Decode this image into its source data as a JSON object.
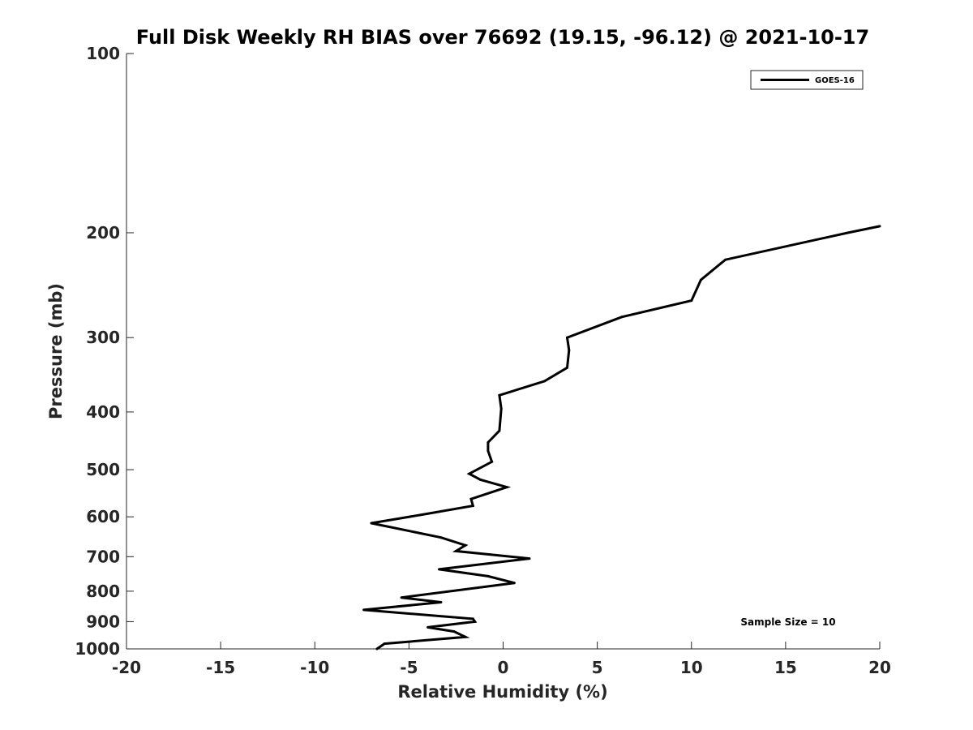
{
  "chart_data": {
    "type": "line",
    "title": "Full Disk Weekly RH BIAS over 76692 (19.15, -96.12) @ 2021-10-17",
    "xlabel": "Relative Humidity (%)",
    "ylabel": "Pressure (mb)",
    "xlim": [
      -20,
      20
    ],
    "ylim": [
      100,
      1000
    ],
    "y_scale": "log",
    "y_reversed": true,
    "x_ticks": [
      "-20",
      "-15",
      "-10",
      "-5",
      "0",
      "5",
      "10",
      "15",
      "20"
    ],
    "y_ticks": [
      "100",
      "200",
      "300",
      "400",
      "500",
      "600",
      "700",
      "800",
      "900",
      "1000"
    ],
    "grid": false,
    "legend_position": "top-right",
    "annotation": "Sample Size = 10",
    "series": [
      {
        "name": "GOES-16",
        "color": "#000000",
        "points": [
          [
            -6.7,
            1000
          ],
          [
            -6.3,
            980
          ],
          [
            -2.0,
            955
          ],
          [
            -2.6,
            935
          ],
          [
            -4.0,
            920
          ],
          [
            -1.5,
            900
          ],
          [
            -1.6,
            890
          ],
          [
            -7.4,
            860
          ],
          [
            -3.3,
            835
          ],
          [
            -5.4,
            820
          ],
          [
            0.6,
            775
          ],
          [
            -0.8,
            755
          ],
          [
            -3.4,
            735
          ],
          [
            1.4,
            705
          ],
          [
            -2.5,
            685
          ],
          [
            -2.0,
            670
          ],
          [
            -3.3,
            650
          ],
          [
            -7.0,
            615
          ],
          [
            -4.3,
            595
          ],
          [
            -1.6,
            575
          ],
          [
            -1.7,
            560
          ],
          [
            0.2,
            535
          ],
          [
            -1.2,
            520
          ],
          [
            -1.8,
            508
          ],
          [
            -0.6,
            485
          ],
          [
            -0.8,
            465
          ],
          [
            -0.8,
            450
          ],
          [
            -0.2,
            430
          ],
          [
            -0.1,
            395
          ],
          [
            -0.2,
            375
          ],
          [
            2.2,
            355
          ],
          [
            3.4,
            337
          ],
          [
            3.5,
            315
          ],
          [
            3.4,
            300
          ],
          [
            6.3,
            277
          ],
          [
            10.0,
            260
          ],
          [
            10.5,
            240
          ],
          [
            11.8,
            222
          ],
          [
            18.3,
            200
          ],
          [
            20.0,
            195
          ]
        ]
      }
    ]
  }
}
